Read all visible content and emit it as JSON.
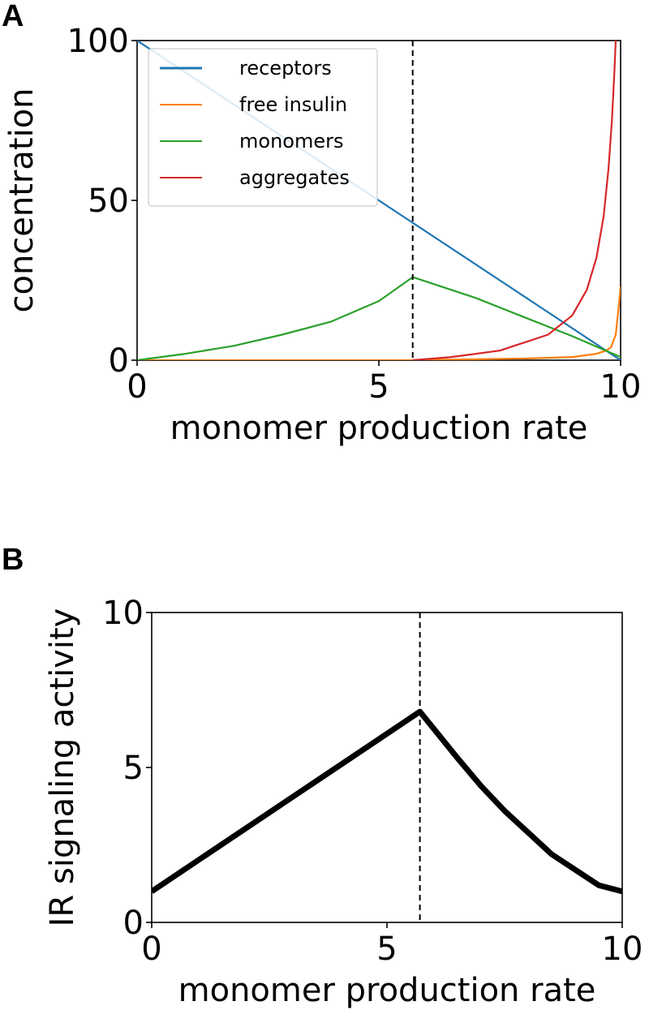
{
  "panels": {
    "a": {
      "letter": "A"
    },
    "b": {
      "letter": "B"
    }
  },
  "chart_data": [
    {
      "type": "line",
      "xlabel": "monomer production rate",
      "ylabel": "concentration",
      "xlim": [
        0,
        10
      ],
      "ylim": [
        0,
        100
      ],
      "xticks": [
        "0",
        "5",
        "10"
      ],
      "yticks": [
        "0",
        "50",
        "100"
      ],
      "grid": false,
      "legend_position": "top-left",
      "vline": {
        "x": 5.7,
        "style": "dashed",
        "color": "#000000"
      },
      "series": [
        {
          "name": "receptors",
          "color": "#1f77b4",
          "x": [
            0,
            2,
            4,
            5.7,
            8,
            10
          ],
          "y": [
            100,
            80,
            60,
            43,
            20,
            0
          ]
        },
        {
          "name": "free insulin",
          "color": "#ff7f0e",
          "x": [
            0,
            5.7,
            8,
            9,
            9.5,
            9.7,
            9.8,
            9.9,
            9.95,
            10
          ],
          "y": [
            0,
            0,
            0.5,
            1,
            2,
            3,
            4,
            8,
            15,
            23
          ]
        },
        {
          "name": "monomers",
          "color": "#2ca02c",
          "x": [
            0,
            1,
            2,
            3,
            4,
            5,
            5.7,
            7,
            8,
            9,
            10
          ],
          "y": [
            0,
            2,
            4.5,
            8,
            12,
            18.5,
            26,
            19.5,
            13.5,
            7.5,
            1
          ]
        },
        {
          "name": "aggregates",
          "color": "#d62728",
          "x": [
            5.7,
            6.5,
            7.5,
            8.5,
            9,
            9.3,
            9.5,
            9.65,
            9.75,
            9.82,
            9.87,
            9.9
          ],
          "y": [
            0,
            1,
            3,
            8,
            14,
            22,
            32,
            45,
            60,
            75,
            90,
            100
          ]
        }
      ]
    },
    {
      "type": "line",
      "xlabel": "monomer production rate",
      "ylabel": "IR signaling activity",
      "xlim": [
        0,
        10
      ],
      "ylim": [
        0,
        10
      ],
      "xticks": [
        "0",
        "5",
        "10"
      ],
      "yticks": [
        "0",
        "5",
        "10"
      ],
      "grid": false,
      "vline": {
        "x": 5.7,
        "style": "dashed",
        "color": "#000000"
      },
      "series": [
        {
          "color": "#000000",
          "x": [
            0,
            5.7,
            6.5,
            7,
            7.5,
            8,
            8.5,
            9,
            9.5,
            10
          ],
          "y": [
            1,
            6.8,
            5.3,
            4.4,
            3.6,
            2.9,
            2.2,
            1.7,
            1.2,
            1.0
          ]
        }
      ]
    }
  ]
}
